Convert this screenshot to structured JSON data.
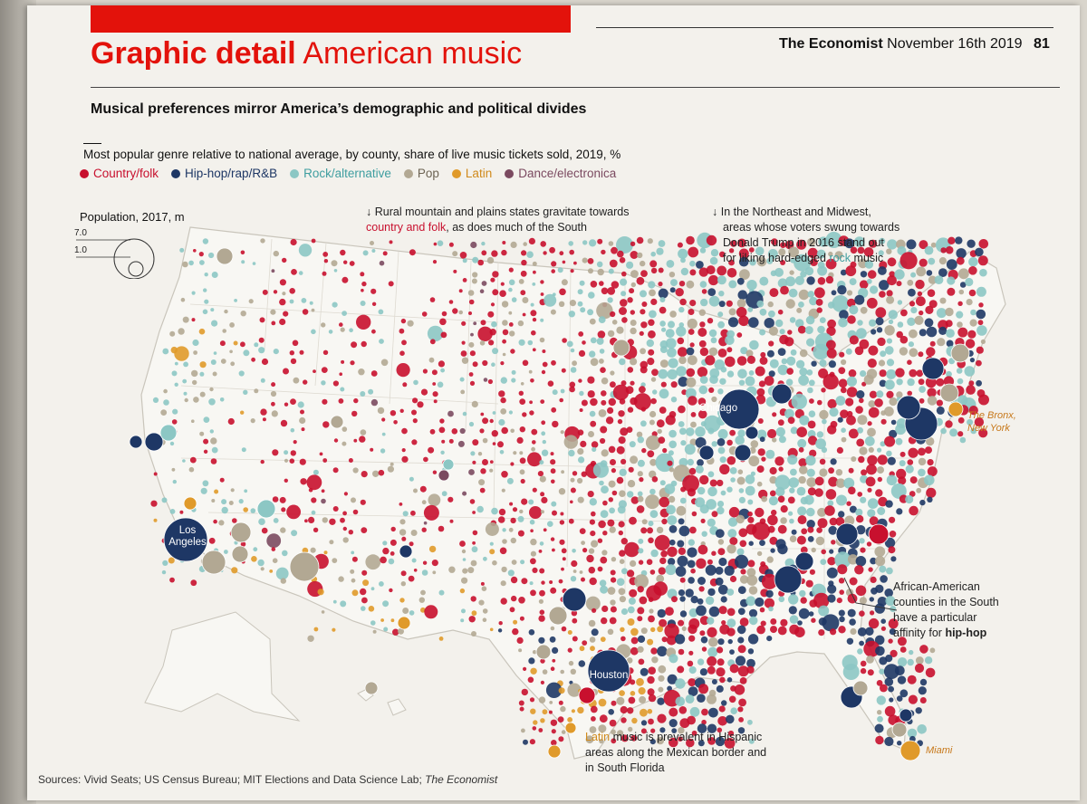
{
  "header": {
    "section_bold": "Graphic detail",
    "section_rest": "American music",
    "publication": "The Economist",
    "date": "November 16th 2019",
    "page_number": "81"
  },
  "headline": "Musical preferences mirror America’s demographic and political divides",
  "subtitle": "Most popular genre relative to national average, by county, share of live music tickets sold, 2019, %",
  "legend": [
    {
      "label": "Country/folk",
      "color": "#c8102e"
    },
    {
      "label": "Hip-hop/rap/R&B",
      "color": "#1e3765"
    },
    {
      "label": "Rock/alternative",
      "color": "#8cc7c4"
    },
    {
      "label": "Pop",
      "color": "#b2a893"
    },
    {
      "label": "Latin",
      "color": "#e09a2a"
    },
    {
      "label": "Dance/electronica",
      "color": "#7b4a60"
    }
  ],
  "population_key": {
    "title": "Population, 2017, m",
    "large_label": "7.0",
    "small_label": "1.0"
  },
  "annotations": {
    "rural_a": "Rural mountain and plains states gravitate towards",
    "rural_b": "country and folk",
    "rural_c": ", as does much of the South",
    "northeast_a": "In the Northeast and Midwest,",
    "northeast_b": "areas whose voters swung towards",
    "northeast_c": "Donald Trump in 2016 stand out",
    "northeast_d": "for liking hard-edged ",
    "northeast_e": "rock",
    "northeast_f": " music",
    "southern_a": "African-American",
    "southern_b": "counties in the South",
    "southern_c": "have a particular",
    "southern_d": "affinity for ",
    "southern_e": "hip-hop",
    "latin_a": "Latin",
    "latin_b": " music is prevalent in Hispanic",
    "latin_c": "areas along the Mexican border and",
    "latin_d": "in South Florida"
  },
  "cities": {
    "chicago": "Chicago",
    "los_angeles_1": "Los",
    "los_angeles_2": "Angeles",
    "houston": "Houston",
    "bronx_1": "The Bronx,",
    "bronx_2": "New York",
    "miami": "Miami"
  },
  "sources_text": "Sources: Vivid Seats; US Census Bureau; MIT Elections and Data Science Lab; ",
  "sources_italic": "The Economist"
}
